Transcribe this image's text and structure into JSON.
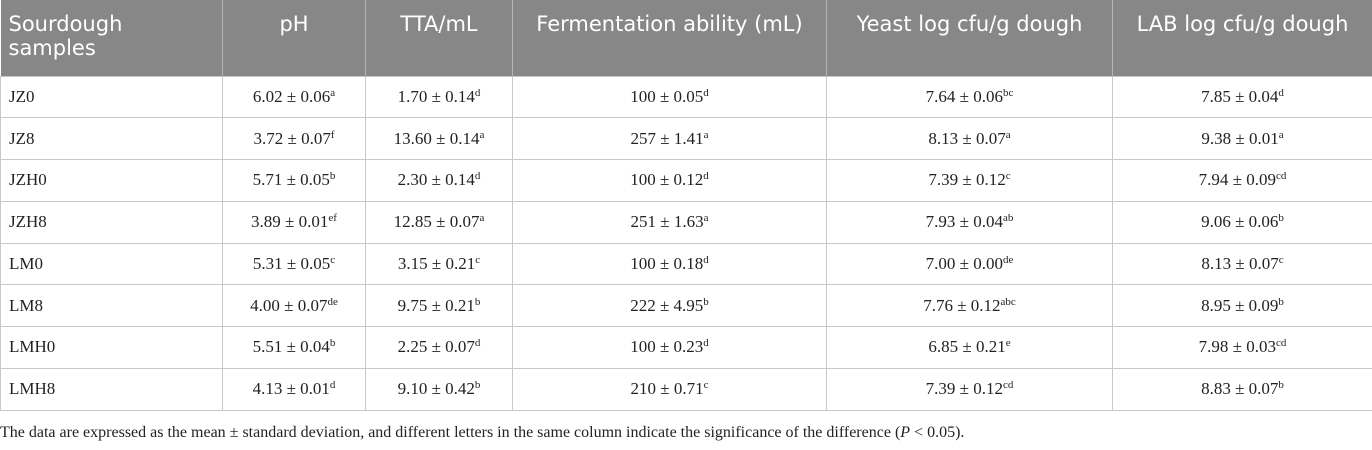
{
  "table": {
    "headers": [
      "Sourdough samples",
      "pH",
      "TTA/mL",
      "Fermentation ability (mL)",
      "Yeast log cfu/g dough",
      "LAB log cfu/g dough"
    ],
    "rows": [
      [
        {
          "value": "JZ0"
        },
        {
          "value": "6.02 ± 0.06",
          "sup": "a"
        },
        {
          "value": "1.70 ± 0.14",
          "sup": "d"
        },
        {
          "value": "100 ± 0.05",
          "sup": "d"
        },
        {
          "value": "7.64 ± 0.06",
          "sup": "bc"
        },
        {
          "value": "7.85 ± 0.04",
          "sup": "d"
        }
      ],
      [
        {
          "value": "JZ8"
        },
        {
          "value": "3.72 ± 0.07",
          "sup": "f"
        },
        {
          "value": "13.60 ± 0.14",
          "sup": "a"
        },
        {
          "value": "257 ± 1.41",
          "sup": "a"
        },
        {
          "value": "8.13 ± 0.07",
          "sup": "a"
        },
        {
          "value": "9.38 ± 0.01",
          "sup": "a"
        }
      ],
      [
        {
          "value": "JZH0"
        },
        {
          "value": "5.71 ± 0.05",
          "sup": "b"
        },
        {
          "value": "2.30 ± 0.14",
          "sup": "d"
        },
        {
          "value": "100 ± 0.12",
          "sup": "d"
        },
        {
          "value": "7.39 ± 0.12",
          "sup": "c"
        },
        {
          "value": "7.94 ± 0.09",
          "sup": "cd"
        }
      ],
      [
        {
          "value": "JZH8"
        },
        {
          "value": "3.89 ± 0.01",
          "sup": "ef"
        },
        {
          "value": "12.85 ± 0.07",
          "sup": "a"
        },
        {
          "value": "251 ± 1.63",
          "sup": "a"
        },
        {
          "value": "7.93 ± 0.04",
          "sup": "ab"
        },
        {
          "value": "9.06 ± 0.06",
          "sup": "b"
        }
      ],
      [
        {
          "value": "LM0"
        },
        {
          "value": "5.31 ± 0.05",
          "sup": "c"
        },
        {
          "value": "3.15 ± 0.21",
          "sup": "c"
        },
        {
          "value": "100 ± 0.18",
          "sup": "d"
        },
        {
          "value": "7.00 ± 0.00",
          "sup": "de"
        },
        {
          "value": "8.13 ± 0.07",
          "sup": "c"
        }
      ],
      [
        {
          "value": "LM8"
        },
        {
          "value": "4.00 ± 0.07",
          "sup": "de"
        },
        {
          "value": "9.75 ± 0.21",
          "sup": "b"
        },
        {
          "value": "222 ± 4.95",
          "sup": "b"
        },
        {
          "value": "7.76 ± 0.12",
          "sup": "abc"
        },
        {
          "value": "8.95 ± 0.09",
          "sup": "b"
        }
      ],
      [
        {
          "value": "LMH0"
        },
        {
          "value": "5.51 ± 0.04",
          "sup": "b"
        },
        {
          "value": "2.25 ± 0.07",
          "sup": "d"
        },
        {
          "value": "100 ± 0.23",
          "sup": "d"
        },
        {
          "value": "6.85 ± 0.21",
          "sup": "e"
        },
        {
          "value": "7.98 ± 0.03",
          "sup": "cd"
        }
      ],
      [
        {
          "value": "LMH8"
        },
        {
          "value": "4.13 ± 0.01",
          "sup": "d"
        },
        {
          "value": "9.10 ± 0.42",
          "sup": "b"
        },
        {
          "value": "210 ± 0.71",
          "sup": "c"
        },
        {
          "value": "7.39 ± 0.12",
          "sup": "cd"
        },
        {
          "value": "8.83 ± 0.07",
          "sup": "b"
        }
      ]
    ]
  },
  "footnote": {
    "before": "The data are expressed as the mean ± standard deviation, and different letters in the same column indicate the significance of the difference (",
    "italic": "P",
    "after": " < 0.05)."
  }
}
